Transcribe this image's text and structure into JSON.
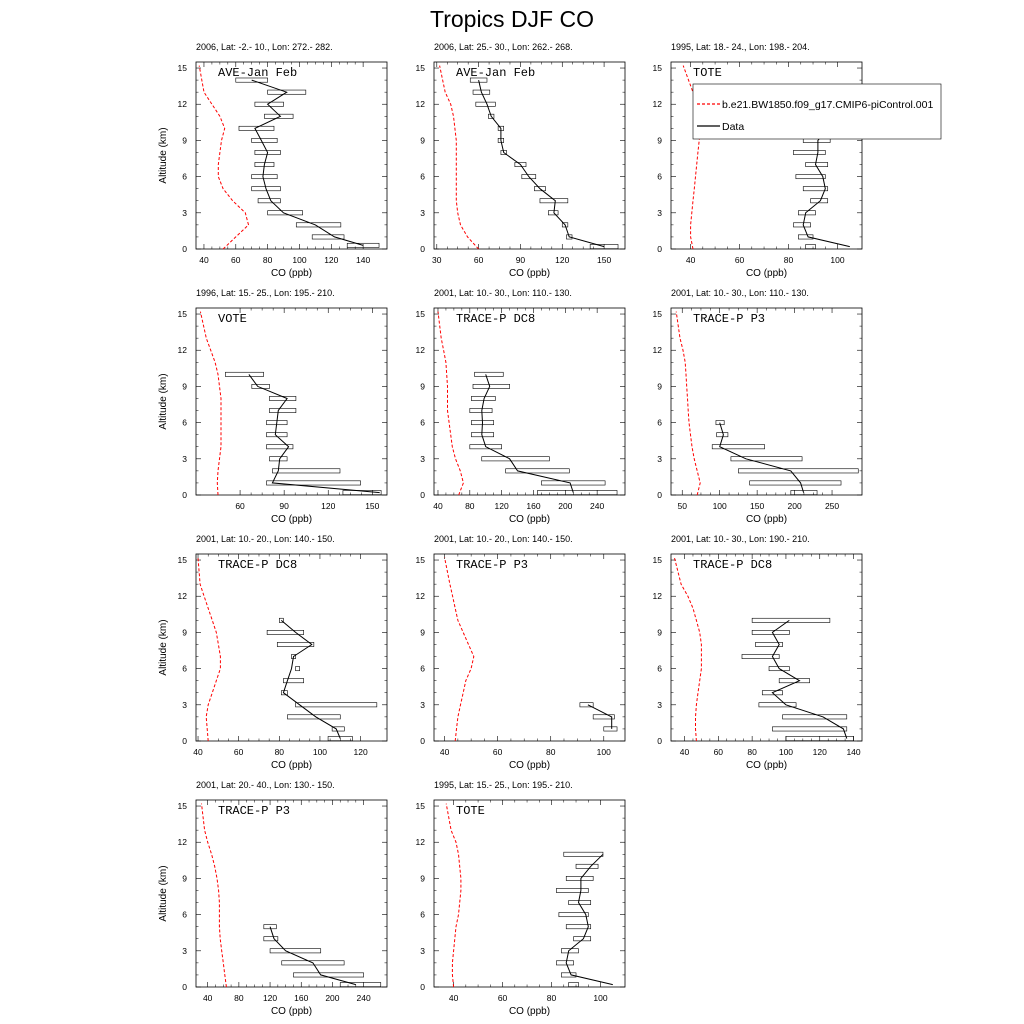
{
  "figure_title": "Tropics DJF CO",
  "legend": {
    "model_label": "b.e21.BW1850.f09_g17.CMIP6-piControl.001",
    "data_label": "Data",
    "model_color": "#ff0000",
    "data_color": "#000000"
  },
  "chart_data": [
    {
      "type": "line",
      "id": "p1",
      "subtitle": "2006, Lat: -2.- 10., Lon: 272.- 282.",
      "campaign": "AVE-Jan Feb",
      "xlabel": "CO (ppb)",
      "ylabel": "Altitude (km)",
      "show_ylabel": true,
      "xlim": [
        35,
        155
      ],
      "ylim": [
        0,
        15.5
      ],
      "xticks": [
        40,
        60,
        80,
        100,
        120,
        140
      ],
      "yticks": [
        0,
        3,
        6,
        9,
        12,
        15
      ],
      "model": {
        "x": [
          52,
          60,
          68,
          66,
          58,
          52,
          49,
          49,
          50,
          51,
          53,
          50,
          45,
          40,
          37
        ],
        "y": [
          0,
          1,
          2,
          3,
          4,
          5,
          6,
          7,
          8,
          9,
          10,
          11,
          12,
          13,
          15.2
        ]
      },
      "obs": {
        "y": [
          0.3,
          1,
          2,
          3,
          4,
          5,
          6,
          7,
          8,
          9,
          10,
          11,
          12,
          13,
          14
        ],
        "x": [
          140,
          122,
          110,
          90,
          82,
          79,
          77,
          78,
          80,
          76,
          72,
          88,
          80,
          92,
          70
        ],
        "lo": [
          130,
          108,
          98,
          80,
          74,
          70,
          70,
          72,
          72,
          70,
          62,
          78,
          72,
          80,
          60
        ],
        "hi": [
          150,
          128,
          126,
          102,
          88,
          88,
          86,
          84,
          88,
          86,
          84,
          96,
          90,
          104,
          80
        ]
      }
    },
    {
      "type": "line",
      "id": "p2",
      "subtitle": "2006, Lat: 25.- 30., Lon: 262.- 268.",
      "campaign": "AVE-Jan Feb",
      "xlabel": "CO (ppb)",
      "ylabel": "Altitude (km)",
      "show_ylabel": false,
      "xlim": [
        28,
        165
      ],
      "ylim": [
        0,
        15.5
      ],
      "xticks": [
        30,
        60,
        90,
        120,
        150
      ],
      "yticks": [
        0,
        3,
        6,
        9,
        12,
        15
      ],
      "model": {
        "x": [
          60,
          52,
          47,
          45,
          44,
          44,
          44,
          44,
          44,
          44,
          43,
          42,
          40,
          36,
          32
        ],
        "y": [
          0,
          1,
          2,
          3,
          4,
          5,
          6,
          7,
          8,
          9,
          10,
          11,
          12,
          13,
          15.2
        ]
      },
      "obs": {
        "y": [
          0.2,
          1,
          2,
          3,
          4,
          5,
          6,
          7,
          8,
          9,
          10,
          11,
          12,
          13,
          14
        ],
        "x": [
          150,
          125,
          122,
          114,
          115,
          104,
          96,
          90,
          78,
          76,
          76,
          69,
          66,
          62,
          60
        ],
        "lo": [
          140,
          123,
          120,
          110,
          104,
          100,
          91,
          86,
          76,
          74,
          74,
          67,
          58,
          56,
          54
        ],
        "hi": [
          160,
          127,
          124,
          117,
          124,
          108,
          101,
          94,
          80,
          78,
          78,
          71,
          72,
          68,
          66
        ]
      }
    },
    {
      "type": "line",
      "id": "p3",
      "subtitle": "1995, Lat: 18.- 24., Lon: 198.- 204.",
      "campaign": "TOTE",
      "xlabel": "CO (ppb)",
      "ylabel": "Altitude (km)",
      "show_ylabel": false,
      "xlim": [
        32,
        110
      ],
      "ylim": [
        0,
        15.5
      ],
      "xticks": [
        40,
        60,
        80,
        100
      ],
      "yticks": [
        0,
        3,
        6,
        9,
        12,
        15
      ],
      "model": {
        "x": [
          41,
          40,
          40,
          40.5,
          41,
          41.5,
          42,
          42.5,
          43,
          43.5,
          44,
          44,
          43,
          41,
          37
        ],
        "y": [
          0,
          1,
          2,
          3,
          4,
          5,
          6,
          7,
          8,
          9,
          10,
          11,
          12,
          13,
          15.2
        ]
      },
      "obs": {
        "y": [
          0.2,
          1,
          2,
          3,
          4,
          5,
          6,
          7,
          8,
          9,
          10,
          11
        ],
        "x": [
          105,
          88,
          86,
          87,
          93,
          95,
          94,
          91,
          92,
          92,
          96,
          101
        ],
        "lo": [
          87,
          84,
          82,
          84,
          89,
          86,
          83,
          87,
          82,
          86,
          90,
          85
        ],
        "hi": [
          91,
          90,
          89,
          91,
          96,
          96,
          95,
          96,
          95,
          97,
          99,
          101
        ]
      }
    },
    {
      "type": "line",
      "id": "p4",
      "subtitle": "1996, Lat: 15.- 25., Lon: 195.- 210.",
      "campaign": "VOTE",
      "xlabel": "CO (ppb)",
      "ylabel": "Altitude (km)",
      "show_ylabel": true,
      "xlim": [
        30,
        160
      ],
      "ylim": [
        0,
        15.5
      ],
      "xticks": [
        60,
        90,
        120,
        150
      ],
      "yticks": [
        0,
        3,
        6,
        9,
        12,
        15
      ],
      "model": {
        "x": [
          45,
          44.5,
          45,
          46,
          47,
          47,
          47,
          47,
          47,
          46,
          45,
          43,
          40,
          37,
          33
        ],
        "y": [
          0,
          1,
          2,
          3,
          4,
          5,
          6,
          7,
          8,
          9,
          10,
          11,
          12,
          13,
          15.2
        ]
      },
      "obs": {
        "y": [
          0.2,
          1,
          2,
          3,
          4,
          5,
          6,
          7,
          8,
          9,
          10
        ],
        "x": [
          155,
          82,
          86,
          87,
          93,
          84,
          85,
          86,
          92,
          72,
          66
        ],
        "lo": [
          130,
          78,
          82,
          80,
          78,
          78,
          78,
          80,
          80,
          68,
          50
        ],
        "hi": [
          156,
          142,
          128,
          92,
          96,
          92,
          92,
          98,
          98,
          80,
          76
        ]
      }
    },
    {
      "type": "line",
      "id": "p5",
      "subtitle": "2001, Lat: 10.- 30., Lon: 110.- 130.",
      "campaign": "TRACE-P DC8",
      "xlabel": "CO (ppb)",
      "ylabel": "Altitude (km)",
      "show_ylabel": false,
      "xlim": [
        35,
        275
      ],
      "ylim": [
        0,
        15.5
      ],
      "xticks": [
        40,
        80,
        120,
        160,
        200,
        240
      ],
      "yticks": [
        0,
        3,
        6,
        9,
        12,
        15
      ],
      "model": {
        "x": [
          66,
          72,
          68,
          62,
          58,
          56,
          54,
          52,
          52,
          52,
          51,
          50,
          47,
          44,
          40
        ],
        "y": [
          0,
          1,
          2,
          3,
          4,
          5,
          6,
          7,
          8,
          9,
          10,
          11,
          12,
          13,
          15.2
        ]
      },
      "obs": {
        "y": [
          0.2,
          1,
          2,
          3,
          4,
          5,
          6,
          7,
          8,
          9,
          10
        ],
        "x": [
          210,
          206,
          140,
          130,
          100,
          95,
          96,
          95,
          98,
          105,
          100
        ],
        "lo": [
          165,
          170,
          125,
          95,
          80,
          82,
          82,
          80,
          82,
          84,
          86
        ],
        "hi": [
          265,
          250,
          205,
          180,
          120,
          110,
          110,
          108,
          112,
          130,
          122
        ]
      }
    },
    {
      "type": "line",
      "id": "p6",
      "subtitle": "2001, Lat: 10.- 30., Lon: 110.- 130.",
      "campaign": "TRACE-P P3",
      "xlabel": "CO (ppb)",
      "ylabel": "Altitude (km)",
      "show_ylabel": false,
      "xlim": [
        35,
        290
      ],
      "ylim": [
        0,
        15.5
      ],
      "xticks": [
        50,
        100,
        150,
        200,
        250
      ],
      "yticks": [
        0,
        3,
        6,
        9,
        12,
        15
      ],
      "model": {
        "x": [
          70,
          74,
          70,
          66,
          63,
          61,
          59,
          58,
          57,
          56,
          55,
          54,
          51,
          47,
          42
        ],
        "y": [
          0,
          1,
          2,
          3,
          4,
          5,
          6,
          7,
          8,
          9,
          10,
          11,
          12,
          13,
          15.2
        ]
      },
      "obs": {
        "y": [
          0.2,
          1,
          2,
          3,
          4,
          5,
          6
        ],
        "x": [
          212,
          208,
          195,
          135,
          100,
          105,
          100
        ],
        "lo": [
          195,
          140,
          125,
          115,
          90,
          96,
          95
        ],
        "hi": [
          230,
          262,
          285,
          210,
          160,
          111,
          106
        ]
      }
    },
    {
      "type": "line",
      "id": "p7",
      "subtitle": "2001, Lat: 10.- 20., Lon: 140.- 150.",
      "campaign": "TRACE-P DC8",
      "xlabel": "CO (ppb)",
      "ylabel": "Altitude (km)",
      "show_ylabel": true,
      "xlim": [
        39,
        133
      ],
      "ylim": [
        0,
        15.5
      ],
      "xticks": [
        40,
        60,
        80,
        100,
        120
      ],
      "yticks": [
        0,
        3,
        6,
        9,
        12,
        15
      ],
      "model": {
        "x": [
          45,
          44.5,
          44,
          45,
          47,
          49,
          51,
          51,
          50,
          49,
          47,
          45,
          43,
          41,
          40
        ],
        "y": [
          0,
          1,
          2,
          3,
          4,
          5,
          6,
          7,
          8,
          9,
          10,
          11,
          12,
          13,
          15.2
        ]
      },
      "obs": {
        "y": [
          0.2,
          1,
          2,
          3,
          4,
          5,
          6,
          7,
          8,
          9,
          10
        ],
        "x": [
          110,
          108,
          98,
          90,
          82,
          84,
          86,
          87,
          96,
          88,
          81
        ],
        "lo": [
          104,
          106,
          84,
          88,
          81,
          82,
          88,
          86,
          79,
          74,
          80
        ],
        "hi": [
          116,
          112,
          110,
          128,
          84,
          92,
          90,
          88,
          97,
          92,
          82
        ]
      }
    },
    {
      "type": "line",
      "id": "p8",
      "subtitle": "2001, Lat: 10.- 20., Lon: 140.- 150.",
      "campaign": "TRACE-P P3",
      "xlabel": "CO (ppb)",
      "ylabel": "Altitude (km)",
      "show_ylabel": false,
      "xlim": [
        36,
        108
      ],
      "ylim": [
        0,
        15.5
      ],
      "xticks": [
        40,
        60,
        80,
        100
      ],
      "yticks": [
        0,
        3,
        6,
        9,
        12,
        15
      ],
      "model": {
        "x": [
          44,
          44.5,
          45,
          46,
          47,
          48,
          50,
          51,
          49,
          47,
          45,
          44,
          43,
          42,
          40
        ],
        "y": [
          0,
          1,
          2,
          3,
          4,
          5,
          6,
          7,
          8,
          9,
          10,
          11,
          12,
          13,
          15.2
        ]
      },
      "obs": {
        "y": [
          1,
          2,
          3
        ],
        "x": [
          103,
          103,
          94
        ],
        "lo": [
          100,
          96,
          91
        ],
        "hi": [
          105,
          104,
          96
        ]
      }
    },
    {
      "type": "line",
      "id": "p9",
      "subtitle": "2001, Lat: 10.- 30., Lon: 190.- 210.",
      "campaign": "TRACE-P DC8",
      "xlabel": "CO (ppb)",
      "ylabel": "Altitude (km)",
      "show_ylabel": false,
      "xlim": [
        32,
        145
      ],
      "ylim": [
        0,
        15.5
      ],
      "xticks": [
        40,
        60,
        80,
        100,
        120,
        140
      ],
      "yticks": [
        0,
        3,
        6,
        9,
        12,
        15
      ],
      "model": {
        "x": [
          47,
          46.5,
          46.5,
          47,
          48,
          49,
          50,
          50,
          50,
          49,
          47,
          45,
          42,
          38,
          34
        ],
        "y": [
          0,
          1,
          2,
          3,
          4,
          5,
          6,
          7,
          8,
          9,
          10,
          11,
          12,
          13,
          15.2
        ]
      },
      "obs": {
        "y": [
          0.2,
          1,
          2,
          3,
          4,
          5,
          6,
          7,
          8,
          9,
          10
        ],
        "x": [
          136,
          134,
          122,
          100,
          92,
          108,
          96,
          92,
          96,
          92,
          102
        ],
        "lo": [
          100,
          92,
          98,
          84,
          86,
          96,
          90,
          74,
          82,
          80,
          80
        ],
        "hi": [
          140,
          136,
          136,
          106,
          98,
          114,
          102,
          96,
          98,
          102,
          126
        ]
      }
    },
    {
      "type": "line",
      "id": "p10",
      "subtitle": "2001, Lat: 20.- 40., Lon: 130.- 150.",
      "campaign": "TRACE-P P3",
      "xlabel": "CO (ppb)",
      "ylabel": "Altitude (km)",
      "show_ylabel": true,
      "xlim": [
        25,
        270
      ],
      "ylim": [
        0,
        15.5
      ],
      "xticks": [
        40,
        80,
        120,
        160,
        200,
        240
      ],
      "yticks": [
        0,
        3,
        6,
        9,
        12,
        15
      ],
      "model": {
        "x": [
          64,
          62,
          60,
          58,
          56,
          55,
          55,
          55,
          54,
          52,
          49,
          45,
          40,
          36,
          32
        ],
        "y": [
          0,
          1,
          2,
          3,
          4,
          5,
          6,
          7,
          8,
          9,
          10,
          11,
          12,
          13,
          15.2
        ]
      },
      "obs": {
        "y": [
          0.2,
          1,
          2,
          3,
          4,
          5
        ],
        "x": [
          230,
          185,
          175,
          140,
          125,
          120
        ],
        "lo": [
          210,
          150,
          135,
          120,
          112,
          112
        ],
        "hi": [
          262,
          240,
          215,
          185,
          130,
          128
        ]
      }
    },
    {
      "type": "line",
      "id": "p11",
      "subtitle": "1995, Lat: 15.- 25., Lon: 195.- 210.",
      "campaign": "TOTE",
      "xlabel": "CO (ppb)",
      "ylabel": "Altitude (km)",
      "show_ylabel": false,
      "xlim": [
        32,
        110
      ],
      "ylim": [
        0,
        15.5
      ],
      "xticks": [
        40,
        60,
        80,
        100
      ],
      "yticks": [
        0,
        3,
        6,
        9,
        12,
        15
      ],
      "model": {
        "x": [
          40,
          39.5,
          39.5,
          40,
          40.5,
          41,
          42,
          42.5,
          43,
          43,
          42.5,
          42,
          41,
          39,
          37
        ],
        "y": [
          0,
          1,
          2,
          3,
          4,
          5,
          6,
          7,
          8,
          9,
          10,
          11,
          12,
          13,
          15.2
        ]
      },
      "obs": {
        "y": [
          0.2,
          1,
          2,
          3,
          4,
          5,
          6,
          7,
          8,
          9,
          10,
          11
        ],
        "x": [
          105,
          88,
          86,
          87,
          93,
          95,
          94,
          91,
          92,
          92,
          96,
          101
        ],
        "lo": [
          87,
          84,
          82,
          84,
          89,
          86,
          83,
          87,
          82,
          86,
          90,
          85
        ],
        "hi": [
          91,
          90,
          89,
          91,
          96,
          96,
          95,
          96,
          95,
          97,
          99,
          101
        ]
      }
    }
  ]
}
